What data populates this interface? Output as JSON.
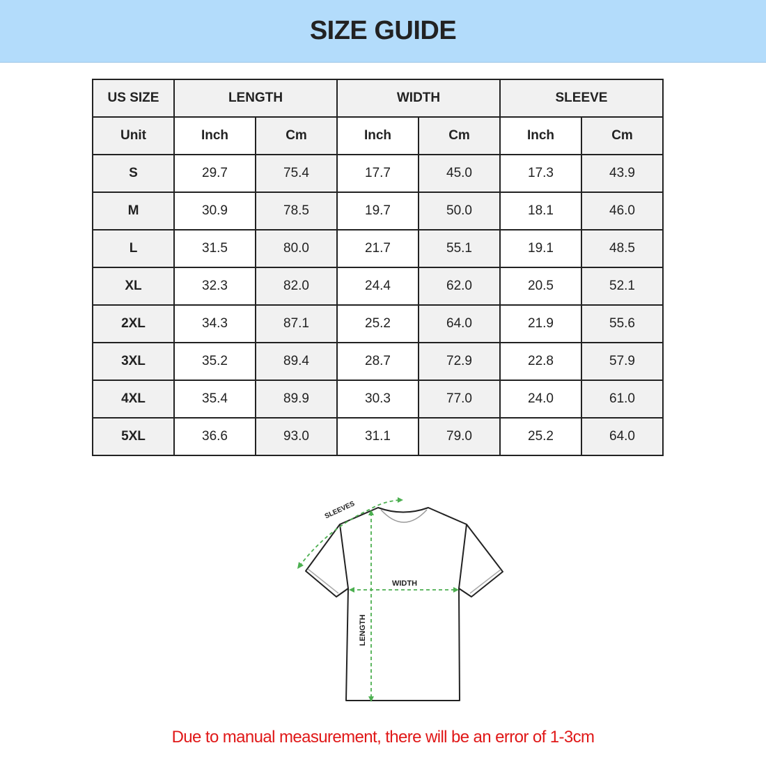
{
  "title": "SIZE GUIDE",
  "colors": {
    "banner": "#b3dcfb",
    "measure_lines": "#4caf50",
    "note": "#e01818"
  },
  "table": {
    "group_headers": [
      "US SIZE",
      "LENGTH",
      "WIDTH",
      "SLEEVE"
    ],
    "unit_row": [
      "Unit",
      "Inch",
      "Cm",
      "Inch",
      "Cm",
      "Inch",
      "Cm"
    ],
    "rows": [
      [
        "S",
        "29.7",
        "75.4",
        "17.7",
        "45.0",
        "17.3",
        "43.9"
      ],
      [
        "M",
        "30.9",
        "78.5",
        "19.7",
        "50.0",
        "18.1",
        "46.0"
      ],
      [
        "L",
        "31.5",
        "80.0",
        "21.7",
        "55.1",
        "19.1",
        "48.5"
      ],
      [
        "XL",
        "32.3",
        "82.0",
        "24.4",
        "62.0",
        "20.5",
        "52.1"
      ],
      [
        "2XL",
        "34.3",
        "87.1",
        "25.2",
        "64.0",
        "21.9",
        "55.6"
      ],
      [
        "3XL",
        "35.2",
        "89.4",
        "28.7",
        "72.9",
        "22.8",
        "57.9"
      ],
      [
        "4XL",
        "35.4",
        "89.9",
        "30.3",
        "77.0",
        "24.0",
        "61.0"
      ],
      [
        "5XL",
        "36.6",
        "93.0",
        "31.1",
        "79.0",
        "25.2",
        "64.0"
      ]
    ]
  },
  "diagram": {
    "sleeves_label": "SLEEVES",
    "width_label": "WIDTH",
    "length_label": "LENGTH"
  },
  "note": "Due to manual measurement, there will be an error of 1-3cm"
}
